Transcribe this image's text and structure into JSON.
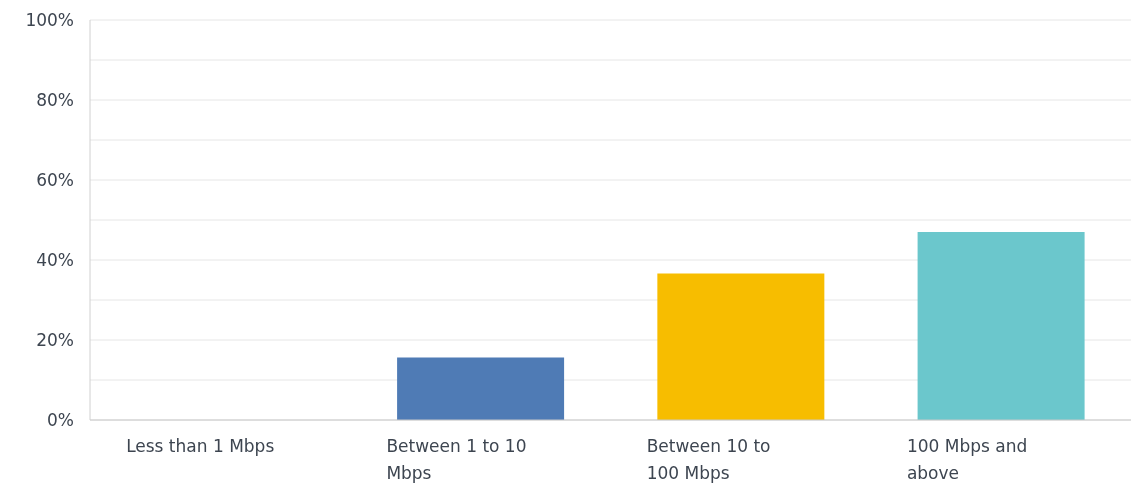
{
  "chart_data": {
    "type": "bar",
    "categories": [
      "Less than 1 Mbps",
      "Between 1 to 10 Mbps",
      "Between 10 to 100 Mbps",
      "100 Mbps and above"
    ],
    "values": [
      0,
      15.6,
      36.6,
      47
    ],
    "colors": [
      "#4f7bb5",
      "#4f7bb5",
      "#f7bd00",
      "#6bc7cc"
    ],
    "ylim": [
      0,
      100
    ],
    "yticks": [
      {
        "value": 0,
        "label": "0%"
      },
      {
        "value": 10,
        "label": null
      },
      {
        "value": 20,
        "label": "20%"
      },
      {
        "value": 30,
        "label": null
      },
      {
        "value": 40,
        "label": "40%"
      },
      {
        "value": 50,
        "label": null
      },
      {
        "value": 60,
        "label": "60%"
      },
      {
        "value": 70,
        "label": null
      },
      {
        "value": 80,
        "label": "80%"
      },
      {
        "value": 90,
        "label": null
      },
      {
        "value": 100,
        "label": "100%"
      }
    ],
    "grid": "y"
  }
}
